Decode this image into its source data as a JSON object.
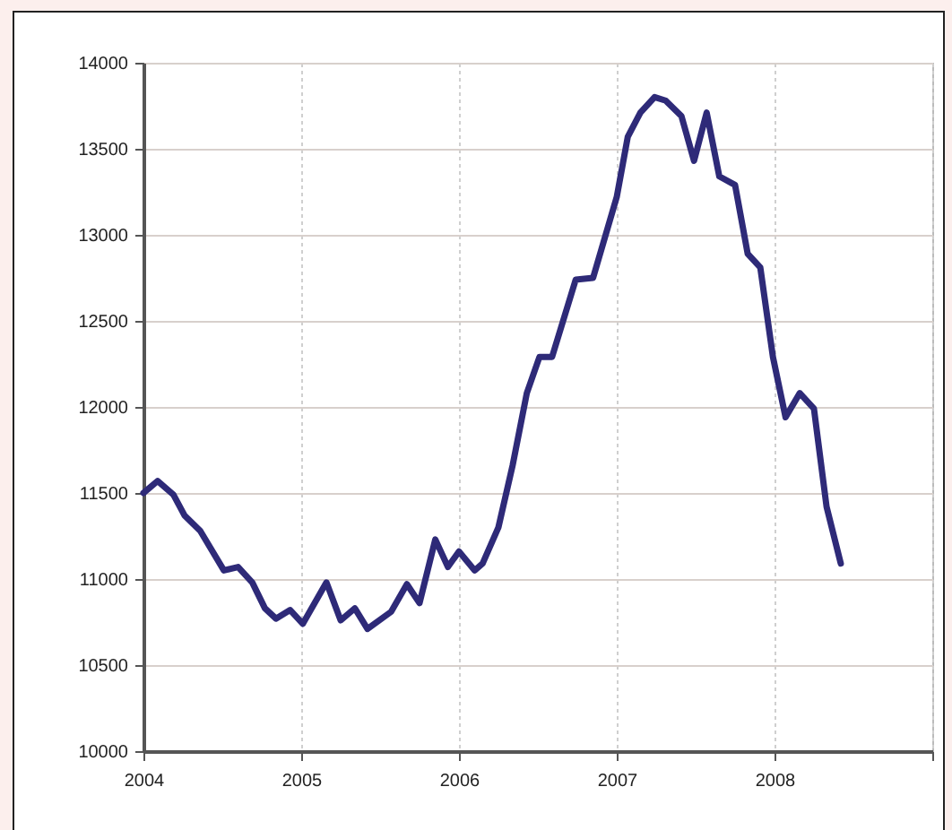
{
  "chart_data": {
    "type": "line",
    "x": [
      2004.0,
      2004.09,
      2004.19,
      2004.26,
      2004.36,
      2004.51,
      2004.6,
      2004.69,
      2004.77,
      2004.84,
      2004.93,
      2005.01,
      2005.16,
      2005.25,
      2005.34,
      2005.42,
      2005.57,
      2005.67,
      2005.75,
      2005.85,
      2005.93,
      2006.0,
      2006.1,
      2006.15,
      2006.25,
      2006.34,
      2006.43,
      2006.51,
      2006.59,
      2006.74,
      2006.85,
      2007.0,
      2007.07,
      2007.15,
      2007.24,
      2007.31,
      2007.41,
      2007.49,
      2007.57,
      2007.65,
      2007.75,
      2007.83,
      2007.91,
      2007.99,
      2008.07,
      2008.16,
      2008.25,
      2008.33,
      2008.42
    ],
    "series": [
      {
        "color": "#2e2a78",
        "values": [
          11500,
          11570,
          11490,
          11370,
          11280,
          11050,
          11070,
          10980,
          10830,
          10770,
          10820,
          10740,
          10980,
          10760,
          10830,
          10710,
          10810,
          10970,
          10860,
          11230,
          11070,
          11160,
          11050,
          11090,
          11300,
          11660,
          12080,
          12290,
          12290,
          12740,
          12750,
          13220,
          13570,
          13710,
          13800,
          13780,
          13690,
          13430,
          13710,
          13340,
          13290,
          12890,
          12810,
          12290,
          11940,
          12080,
          11990,
          11420,
          11090
        ]
      }
    ],
    "xlim": [
      2004,
      2009
    ],
    "xticks": [
      2004,
      2005,
      2006,
      2007,
      2008,
      {
        "value": 2009,
        "label": null
      }
    ],
    "ylim": [
      10000,
      14000
    ],
    "yticks": [
      10000,
      10500,
      11000,
      11500,
      12000,
      12500,
      13000,
      13500,
      14000
    ],
    "grid": true,
    "marker": "none",
    "line_style": "solid"
  }
}
